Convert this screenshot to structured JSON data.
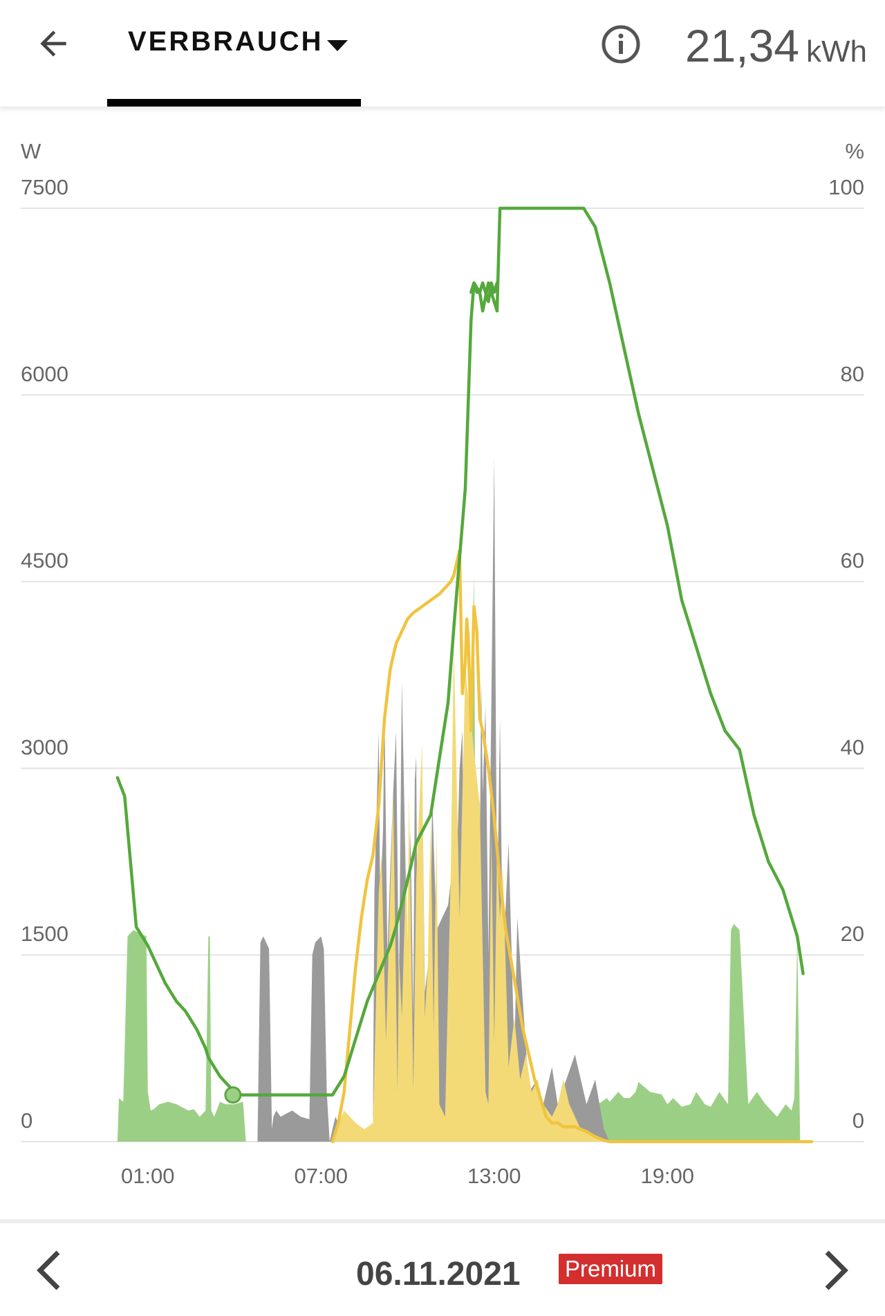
{
  "header": {
    "tab_label": "VERBRAUCH",
    "total_value": "21,34",
    "total_unit": "kWh",
    "icons": {
      "back": "arrow-left-icon",
      "dropdown": "caret-down-icon",
      "info": "info-icon"
    }
  },
  "chart_data": {
    "type": "area",
    "left_axis": {
      "unit": "W",
      "min": 0,
      "max": 7500,
      "ticks": [
        0,
        1500,
        3000,
        4500,
        6000,
        7500
      ]
    },
    "right_axis": {
      "unit": "%",
      "min": 0,
      "max": 100,
      "ticks": [
        0,
        20,
        40,
        60,
        80,
        100
      ]
    },
    "x_axis": {
      "min": 0,
      "max": 24,
      "ticks": [
        1,
        7,
        13,
        19
      ],
      "tick_labels": [
        "01:00",
        "07:00",
        "13:00",
        "19:00"
      ]
    },
    "grid": true,
    "series": [
      {
        "type": "area",
        "axis": "left",
        "color": "#9ccf86",
        "x": [
          -0.05,
          0.0,
          0.15,
          0.3,
          0.5,
          0.95,
          1.0,
          1.1,
          1.2,
          1.4,
          1.7,
          2.0,
          2.4,
          2.6,
          2.8,
          3.0,
          3.1,
          3.15,
          3.2,
          3.3,
          3.5,
          3.7,
          4.0,
          4.3,
          4.4,
          12.2,
          12.25,
          12.3,
          12.4,
          12.5,
          12.6,
          13.5,
          15.0,
          16.0,
          16.4,
          16.6,
          16.9,
          17.0,
          17.3,
          17.5,
          17.7,
          17.9,
          18.0,
          18.4,
          18.8,
          19.0,
          19.2,
          19.5,
          19.8,
          20.0,
          20.3,
          20.5,
          20.8,
          21.1,
          21.2,
          21.3,
          21.5,
          21.8,
          22.1,
          22.4,
          22.8,
          23.1,
          23.3,
          23.4,
          23.5,
          23.6
        ],
        "y": [
          0,
          350,
          320,
          1650,
          1700,
          1650,
          400,
          250,
          260,
          300,
          320,
          300,
          250,
          260,
          200,
          250,
          1650,
          1650,
          250,
          200,
          320,
          300,
          300,
          320,
          0,
          0,
          4000,
          4550,
          300,
          2800,
          350,
          0,
          0,
          150,
          250,
          300,
          350,
          320,
          400,
          350,
          350,
          400,
          480,
          400,
          380,
          300,
          350,
          280,
          300,
          400,
          300,
          280,
          400,
          300,
          1700,
          1750,
          1700,
          300,
          400,
          300,
          200,
          300,
          250,
          350,
          1650,
          0
        ]
      },
      {
        "type": "area",
        "axis": "left",
        "color": "#9a9a9a",
        "x": [
          4.8,
          4.9,
          5.0,
          5.2,
          5.3,
          5.35,
          5.45,
          5.6,
          6.0,
          6.3,
          6.6,
          6.7,
          6.8,
          7.0,
          7.1,
          7.2,
          7.25,
          7.3,
          7.4,
          7.5,
          7.6,
          8.7,
          8.8,
          8.85,
          9.0,
          9.05,
          9.15,
          9.2,
          9.3,
          9.4,
          9.5,
          9.6,
          9.7,
          9.8,
          10.0,
          10.1,
          10.2,
          10.25,
          10.3,
          10.35,
          10.5,
          10.6,
          10.8,
          10.85,
          11.0,
          11.4,
          11.5,
          11.6,
          11.8,
          11.9,
          12.0,
          12.1,
          12.2,
          12.3,
          12.4,
          12.5,
          12.55,
          12.6,
          12.7,
          12.8,
          13.0,
          13.1,
          13.2,
          13.3,
          13.5,
          13.7,
          13.8,
          14.0,
          14.2,
          14.5,
          14.7,
          15.0,
          15.2,
          15.5,
          15.8,
          16.2,
          16.5,
          16.8,
          17.0
        ],
        "y": [
          0,
          1600,
          1650,
          1550,
          100,
          200,
          250,
          200,
          250,
          200,
          180,
          1500,
          1600,
          1650,
          1550,
          400,
          200,
          0,
          100,
          200,
          150,
          0,
          100,
          2000,
          3300,
          1900,
          2500,
          3500,
          1500,
          2200,
          2800,
          3300,
          1200,
          3700,
          1400,
          2500,
          1000,
          2900,
          3100,
          1300,
          3100,
          1200,
          1600,
          2800,
          1700,
          1900,
          2100,
          1400,
          3000,
          3300,
          1000,
          400,
          200,
          500,
          2500,
          2200,
          3700,
          2800,
          3500,
          1500,
          5500,
          1800,
          3400,
          1400,
          2400,
          700,
          1800,
          1100,
          400,
          500,
          300,
          600,
          300,
          500,
          700,
          300,
          500,
          100,
          0
        ]
      },
      {
        "type": "area",
        "axis": "left",
        "color": "#f3da77",
        "x": [
          7.4,
          7.6,
          7.8,
          8.0,
          8.2,
          8.5,
          8.8,
          9.0,
          9.1,
          9.25,
          9.5,
          9.65,
          9.7,
          9.8,
          9.95,
          10.0,
          10.05,
          10.2,
          10.3,
          10.5,
          10.6,
          10.7,
          10.8,
          10.9,
          11.0,
          11.1,
          11.3,
          11.5,
          11.6,
          11.8,
          12.0,
          12.5,
          12.7,
          12.8,
          12.9,
          13.0,
          13.1,
          13.2,
          13.3,
          13.5,
          13.7,
          13.9,
          14.1,
          14.3,
          14.5,
          14.7,
          15.0,
          15.2,
          15.4,
          15.6,
          15.8,
          16.0,
          16.3,
          16.6,
          16.8,
          17.0
        ],
        "y": [
          0,
          150,
          250,
          200,
          150,
          100,
          150,
          2000,
          2300,
          800,
          2800,
          400,
          1500,
          1000,
          2200,
          1600,
          2800,
          400,
          2100,
          3200,
          1000,
          1400,
          2600,
          900,
          2500,
          300,
          200,
          2200,
          4000,
          1800,
          3800,
          2700,
          400,
          300,
          2500,
          800,
          2300,
          1800,
          2200,
          600,
          1000,
          500,
          700,
          400,
          500,
          300,
          200,
          300,
          500,
          300,
          200,
          100,
          80,
          30,
          10,
          0
        ]
      },
      {
        "type": "line",
        "axis": "left",
        "color": "#f0c440",
        "x": [
          7.4,
          7.6,
          7.8,
          8.0,
          8.2,
          8.4,
          8.6,
          8.8,
          8.9,
          9.0,
          9.2,
          9.4,
          9.6,
          9.8,
          10.0,
          10.2,
          10.5,
          10.8,
          11.1,
          11.3,
          11.5,
          11.6,
          11.7,
          11.8,
          11.9,
          12.0,
          12.05,
          12.1,
          12.2,
          12.3,
          12.4,
          12.5,
          12.6,
          12.8,
          13.0,
          13.2,
          13.4,
          13.7,
          14.0,
          14.4,
          14.8,
          15.0,
          15.2,
          15.4,
          15.6,
          15.8,
          16.0,
          16.2,
          16.5,
          16.8,
          17.0,
          24.0
        ],
        "y": [
          0,
          150,
          400,
          900,
          1400,
          1800,
          2100,
          2300,
          2500,
          2700,
          3400,
          3800,
          4000,
          4100,
          4200,
          4250,
          4300,
          4350,
          4400,
          4450,
          4500,
          4550,
          4650,
          4750,
          3600,
          3850,
          4200,
          4050,
          3300,
          4300,
          4100,
          3400,
          3300,
          3000,
          2600,
          2100,
          1700,
          1300,
          900,
          500,
          200,
          150,
          150,
          120,
          120,
          120,
          100,
          80,
          40,
          10,
          0,
          0
        ]
      },
      {
        "type": "line",
        "axis": "right",
        "color": "#55a83c",
        "x": [
          -0.05,
          0.2,
          0.4,
          0.6,
          1.0,
          1.3,
          1.6,
          2.0,
          2.3,
          2.5,
          2.7,
          3.0,
          3.1,
          3.3,
          3.5,
          3.8,
          4.1,
          4.4,
          4.8,
          5.3,
          6.0,
          6.8,
          7.4,
          7.8,
          8.2,
          8.6,
          9.0,
          9.4,
          9.6,
          10.0,
          10.3,
          10.8,
          11.1,
          11.4,
          11.6,
          12.0,
          12.2,
          12.3,
          12.5,
          12.6,
          12.8,
          13.1,
          13.2,
          13.4,
          14.0,
          15.0,
          15.5,
          16.0,
          16.1,
          16.3,
          16.5,
          17.0,
          17.5,
          18.0,
          18.5,
          19.0,
          19.5,
          20.0,
          20.5,
          21.0,
          21.5,
          22.0,
          22.5,
          23.0,
          23.5,
          23.7
        ],
        "y": [
          39,
          37,
          30,
          23,
          21,
          19,
          17,
          15,
          14,
          13,
          12,
          10,
          9,
          8,
          7,
          6,
          5,
          5,
          5,
          5,
          5,
          5,
          5,
          7,
          11,
          15,
          18,
          21,
          23,
          28,
          32,
          35,
          41,
          47,
          55,
          70,
          88,
          92,
          91,
          89,
          92,
          89,
          100,
          100,
          100,
          100,
          100,
          100,
          100,
          99,
          98,
          92,
          85,
          78,
          72,
          66,
          58,
          53,
          48,
          44,
          42,
          35,
          30,
          27,
          22,
          18
        ]
      },
      {
        "type": "line",
        "axis": "right",
        "color": "#55a83c",
        "x": [
          12.2,
          12.3,
          12.4,
          12.5,
          12.6,
          12.7,
          12.8,
          12.9,
          13.0,
          13.1
        ],
        "y": [
          91,
          92,
          91,
          91,
          92,
          91,
          90,
          92,
          91,
          92
        ]
      }
    ],
    "marker": {
      "x": 3.95,
      "y": 5,
      "axis": "right"
    }
  },
  "footer": {
    "date": "06.11.2021",
    "badge": "Premium",
    "badge_color": "#d32f2f",
    "icons": {
      "prev": "chevron-left-icon",
      "next": "chevron-right-icon"
    }
  }
}
